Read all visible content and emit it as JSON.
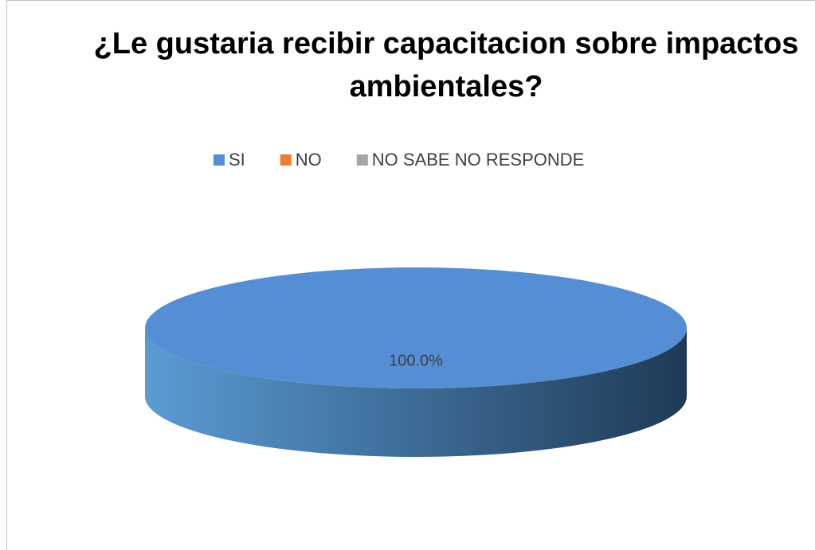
{
  "chart_data": {
    "type": "pie",
    "title": "¿Le gustaria recibir capacitacion sobre impactos ambientales?",
    "categories": [
      "SI",
      "NO",
      "NO SABE NO RESPONDE"
    ],
    "values": [
      100,
      0,
      0
    ],
    "value_labels": [
      "100.0%",
      null,
      null
    ],
    "colors": [
      "#558ed5",
      "#ed7d31",
      "#a5a5a5"
    ],
    "legend": "top"
  }
}
